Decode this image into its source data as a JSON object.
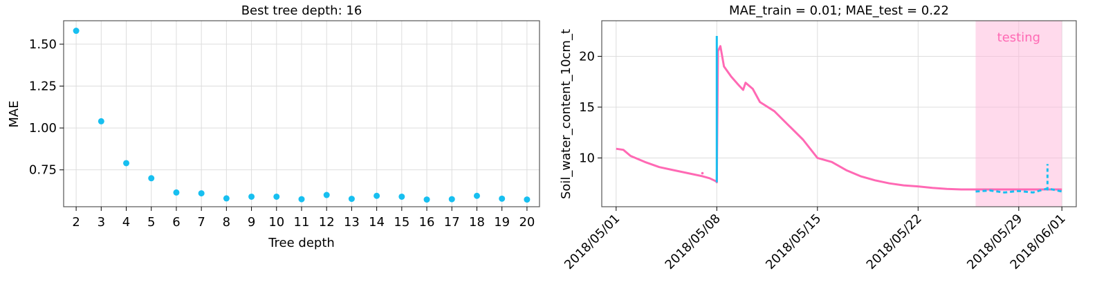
{
  "chart_data": [
    {
      "type": "scatter",
      "title": "Best tree depth: 16",
      "xlabel": "Tree depth",
      "ylabel": "MAE",
      "x": [
        2,
        3,
        4,
        5,
        6,
        7,
        8,
        9,
        10,
        11,
        12,
        13,
        14,
        15,
        16,
        17,
        18,
        19,
        20
      ],
      "y": [
        1.58,
        1.04,
        0.79,
        0.7,
        0.615,
        0.61,
        0.58,
        0.59,
        0.59,
        0.575,
        0.6,
        0.577,
        0.595,
        0.59,
        0.573,
        0.575,
        0.595,
        0.578,
        0.573
      ],
      "xticks": [
        "2",
        "3",
        "4",
        "5",
        "6",
        "7",
        "8",
        "9",
        "10",
        "11",
        "12",
        "13",
        "14",
        "15",
        "16",
        "17",
        "18",
        "19",
        "20"
      ],
      "yticks": [
        "0.75",
        "1.00",
        "1.25",
        "1.50"
      ],
      "ylim": [
        0.53,
        1.64
      ],
      "xlim": [
        1.5,
        20.5
      ],
      "grid": true,
      "color": "#17bff0"
    },
    {
      "type": "line",
      "title": "MAE_train = 0.01; MAE_test = 0.22",
      "xlabel": "",
      "ylabel": "Soil_water_content_10cm_t",
      "xticks": [
        "2018/05/01",
        "2018/05/08",
        "2018/05/15",
        "2018/05/22",
        "2018/05/29",
        "2018/06/01"
      ],
      "yticks": [
        "10",
        "15",
        "20"
      ],
      "xlim": [
        "2018/04/30",
        "2018/06/02"
      ],
      "ylim": [
        5.2,
        23.5
      ],
      "grid": true,
      "annotation": "testing",
      "testing_span": [
        "2018/05/26",
        "2018/06/01"
      ],
      "series": [
        {
          "color": "#ff69b4",
          "x": [
            "2018/05/01",
            "2018/05/01 12:00",
            "2018/05/02",
            "2018/05/03",
            "2018/05/04",
            "2018/05/05",
            "2018/05/06",
            "2018/05/07",
            "2018/05/07 12:00",
            "2018/05/07 23:00",
            "2018/05/08",
            "2018/05/08 02:00",
            "2018/05/08 06:00",
            "2018/05/08 12:00",
            "2018/05/09",
            "2018/05/09 12:00",
            "2018/05/09 20:00",
            "2018/05/10",
            "2018/05/10 12:00",
            "2018/05/11",
            "2018/05/12",
            "2018/05/13",
            "2018/05/14",
            "2018/05/15",
            "2018/05/16",
            "2018/05/17",
            "2018/05/18",
            "2018/05/19",
            "2018/05/20",
            "2018/05/21",
            "2018/05/22",
            "2018/05/23",
            "2018/05/24",
            "2018/05/25",
            "2018/05/26",
            "2018/05/27",
            "2018/05/28",
            "2018/05/29",
            "2018/05/30",
            "2018/05/31",
            "2018/06/01"
          ],
          "y": [
            10.9,
            10.8,
            10.2,
            9.6,
            9.1,
            8.8,
            8.5,
            8.2,
            8.0,
            7.7,
            7.6,
            20.5,
            21.0,
            19.0,
            18.0,
            17.2,
            16.7,
            17.4,
            16.8,
            15.5,
            14.6,
            13.2,
            11.8,
            10.0,
            9.6,
            8.8,
            8.2,
            7.8,
            7.5,
            7.3,
            7.2,
            7.05,
            6.95,
            6.9,
            6.9,
            6.9,
            6.9,
            6.9,
            6.9,
            6.9,
            6.9
          ]
        },
        {
          "color": "#17bff0",
          "x": [
            "2018/05/26",
            "2018/05/27",
            "2018/05/28",
            "2018/05/29",
            "2018/05/30",
            "2018/05/31",
            "2018/06/01"
          ],
          "y": [
            6.7,
            6.8,
            6.6,
            6.75,
            6.6,
            7.0,
            6.7
          ]
        }
      ]
    }
  ]
}
